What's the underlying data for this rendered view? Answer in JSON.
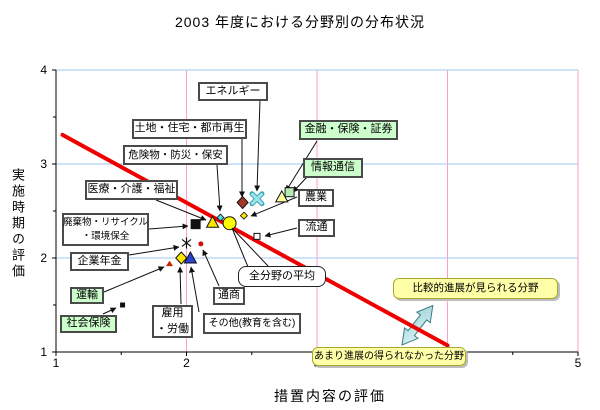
{
  "title": "2003 年度における分野別の分布状況",
  "x_axis": {
    "label": "措置内容の評価",
    "ticks": [
      "1",
      "2",
      "3",
      "4",
      "5"
    ],
    "range": [
      1,
      5
    ],
    "gridline_color": "#ff9ec8"
  },
  "y_axis": {
    "label": "実施時期の評価",
    "ticks": [
      "4",
      "3",
      "2",
      "1"
    ],
    "range": [
      1,
      4
    ],
    "gridline_color": "#9fc8f0"
  },
  "chart_data": {
    "type": "scatter",
    "title": "2003 年度における分野別の分布状況",
    "xlabel": "措置内容の評価",
    "ylabel": "実施時期の評価",
    "xlim": [
      1,
      5
    ],
    "ylim": [
      1,
      4
    ],
    "grid": true,
    "points": [
      {
        "name": "shakai-hoken",
        "label": "社会保険",
        "x": 1.51,
        "y": 1.5,
        "marker": "square-small",
        "color": "#111111"
      },
      {
        "name": "unyu",
        "label": "運輸",
        "x": 1.87,
        "y": 1.94,
        "marker": "triangle-small",
        "color": "#cc2200"
      },
      {
        "name": "koyo-rodo",
        "label": "雇用・労働",
        "label_lines": [
          "雇用",
          "・労働"
        ],
        "x": 1.96,
        "y": 2.0,
        "marker": "diamond",
        "color": "#ffe600"
      },
      {
        "name": "sonota",
        "label": "その他(教育を含む)",
        "x": 2.03,
        "y": 2.0,
        "marker": "triangle",
        "color": "#2a3fd4"
      },
      {
        "name": "kigyo-nenkin",
        "label": "企業年金",
        "x": 2.0,
        "y": 2.16,
        "marker": "asterisk",
        "color": "#111111"
      },
      {
        "name": "tsusho",
        "label": "通商",
        "x": 2.11,
        "y": 2.15,
        "marker": "dot",
        "color": "#cc1111"
      },
      {
        "name": "haikibutsu",
        "label": "廃棄物・リサイクル・環境保全",
        "label_lines": [
          "廃棄物・リサイクル",
          "・環境保全"
        ],
        "x": 2.07,
        "y": 2.36,
        "marker": "square",
        "color": "#111111"
      },
      {
        "name": "iryo",
        "label": "医療・介護・福祉",
        "x": 2.2,
        "y": 2.38,
        "marker": "triangle",
        "color": "#ffe600"
      },
      {
        "name": "kikenbutsu",
        "label": "危険物・防災・保安",
        "x": 2.26,
        "y": 2.43,
        "marker": "diamond-small",
        "color": "#55d8e0"
      },
      {
        "name": "zenbunya-heikin",
        "label": "全分野の平均",
        "x": 2.33,
        "y": 2.37,
        "marker": "circle",
        "color": "#ffff00"
      },
      {
        "name": "nogyo",
        "label": "農業",
        "x": 2.44,
        "y": 2.45,
        "marker": "diamond-small",
        "color": "#ffe600"
      },
      {
        "name": "tochi-jutaku",
        "label": "土地・住宅・都市再生",
        "x": 2.43,
        "y": 2.59,
        "marker": "diamond",
        "color": "#a03828"
      },
      {
        "name": "energy",
        "label": "エネルギー",
        "x": 2.54,
        "y": 2.63,
        "marker": "x",
        "color": "#9fe2ea"
      },
      {
        "name": "ryutsu",
        "label": "流通",
        "x": 2.54,
        "y": 2.23,
        "marker": "square-open",
        "color": "#ffffff"
      },
      {
        "name": "kinyu",
        "label": "金融・保険・証券",
        "x": 2.73,
        "y": 2.65,
        "marker": "triangle",
        "color": "#ffffa0"
      },
      {
        "name": "joho-tsushin",
        "label": "情報通信",
        "x": 2.79,
        "y": 2.7,
        "marker": "square",
        "color": "#b8eab8"
      }
    ],
    "trend_line": {
      "x1": 1.05,
      "y1": 3.31,
      "x2": 4.0,
      "y2": 1.07,
      "color": "#ee0000"
    }
  },
  "annotations": {
    "positive": "比較的進展が見られる分野",
    "negative": "あまり進展の得られなかった分野",
    "callout_fill": "#ffffa8",
    "arrow_fill": "#c2e6e8"
  }
}
